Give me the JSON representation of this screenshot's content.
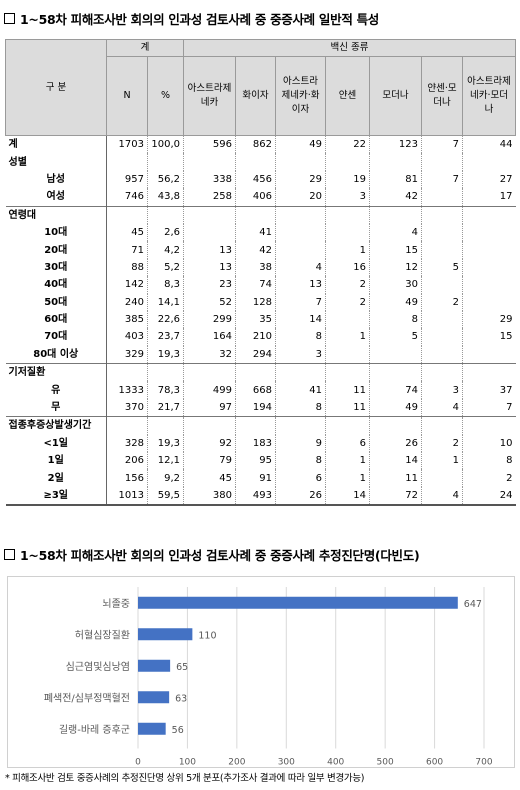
{
  "table_title": "1~58차 피해조사반 회의의 인과성 검토사례 중 중증사례 일반적 특성",
  "chart_title": "1~58차 피해조사반 회의의 인과성 검토사례 중 중증사례 추정진단명(다빈도)",
  "table": {
    "header": {
      "group": "구 분",
      "total": "계",
      "vaccine_type": "백신 종류",
      "n": "N",
      "pct": "%",
      "vaccines": [
        "아스트라제네카",
        "화이자",
        "아스트라제네카·화이자",
        "얀센",
        "모더나",
        "얀센·모더나",
        "아스트라제네카·모더나"
      ]
    },
    "rows": [
      {
        "label": "계",
        "kind": "hdr",
        "grp": true,
        "cells": [
          "1703",
          "100,0",
          "596",
          "862",
          "49",
          "22",
          "123",
          "7",
          "44"
        ]
      },
      {
        "label": "성별",
        "kind": "hdr",
        "cells": [
          "",
          "",
          "",
          "",
          "",
          "",
          "",
          "",
          ""
        ]
      },
      {
        "label": "남성",
        "kind": "sub",
        "cells": [
          "957",
          "56,2",
          "338",
          "456",
          "29",
          "19",
          "81",
          "7",
          "27"
        ]
      },
      {
        "label": "여성",
        "kind": "sub",
        "cells": [
          "746",
          "43,8",
          "258",
          "406",
          "20",
          "3",
          "42",
          "",
          "17"
        ]
      },
      {
        "label": "연령대",
        "kind": "hdr",
        "grp": true,
        "cells": [
          "",
          "",
          "",
          "",
          "",
          "",
          "",
          "",
          ""
        ]
      },
      {
        "label": "10대",
        "kind": "sub",
        "cells": [
          "45",
          "2,6",
          "",
          "41",
          "",
          "",
          "4",
          "",
          ""
        ]
      },
      {
        "label": "20대",
        "kind": "sub",
        "cells": [
          "71",
          "4,2",
          "13",
          "42",
          "",
          "1",
          "15",
          "",
          ""
        ]
      },
      {
        "label": "30대",
        "kind": "sub",
        "cells": [
          "88",
          "5,2",
          "13",
          "38",
          "4",
          "16",
          "12",
          "5",
          ""
        ]
      },
      {
        "label": "40대",
        "kind": "sub",
        "cells": [
          "142",
          "8,3",
          "23",
          "74",
          "13",
          "2",
          "30",
          "",
          ""
        ]
      },
      {
        "label": "50대",
        "kind": "sub",
        "cells": [
          "240",
          "14,1",
          "52",
          "128",
          "7",
          "2",
          "49",
          "2",
          ""
        ]
      },
      {
        "label": "60대",
        "kind": "sub",
        "cells": [
          "385",
          "22,6",
          "299",
          "35",
          "14",
          "",
          "8",
          "",
          "29"
        ]
      },
      {
        "label": "70대",
        "kind": "sub",
        "cells": [
          "403",
          "23,7",
          "164",
          "210",
          "8",
          "1",
          "5",
          "",
          "15"
        ]
      },
      {
        "label": "80대 이상",
        "kind": "sub",
        "cells": [
          "329",
          "19,3",
          "32",
          "294",
          "3",
          "",
          "",
          "",
          ""
        ]
      },
      {
        "label": "기저질환",
        "kind": "hdr",
        "grp": true,
        "cells": [
          "",
          "",
          "",
          "",
          "",
          "",
          "",
          "",
          ""
        ]
      },
      {
        "label": "유",
        "kind": "sub",
        "cells": [
          "1333",
          "78,3",
          "499",
          "668",
          "41",
          "11",
          "74",
          "3",
          "37"
        ]
      },
      {
        "label": "무",
        "kind": "sub",
        "cells": [
          "370",
          "21,7",
          "97",
          "194",
          "8",
          "11",
          "49",
          "4",
          "7"
        ]
      },
      {
        "label": "접종후증상발생기간",
        "kind": "hdr",
        "grp": true,
        "cells": [
          "",
          "",
          "",
          "",
          "",
          "",
          "",
          "",
          ""
        ]
      },
      {
        "label": "<1일",
        "kind": "sub",
        "cells": [
          "328",
          "19,3",
          "92",
          "183",
          "9",
          "6",
          "26",
          "2",
          "10"
        ]
      },
      {
        "label": "1일",
        "kind": "sub",
        "cells": [
          "206",
          "12,1",
          "79",
          "95",
          "8",
          "1",
          "14",
          "1",
          "8"
        ]
      },
      {
        "label": "2일",
        "kind": "sub",
        "cells": [
          "156",
          "9,2",
          "45",
          "91",
          "6",
          "1",
          "11",
          "",
          "2"
        ]
      },
      {
        "label": "≥3일",
        "kind": "sub",
        "last": true,
        "cells": [
          "1013",
          "59,5",
          "380",
          "493",
          "26",
          "14",
          "72",
          "4",
          "24"
        ]
      }
    ]
  },
  "chart_data": {
    "type": "bar",
    "orientation": "horizontal",
    "categories": [
      "뇌졸중",
      "허혈심장질환",
      "심근염및심낭염",
      "폐색전/심부정맥혈전",
      "길랭-바레 증후군"
    ],
    "values": [
      647,
      110,
      65,
      63,
      56
    ],
    "xlim": [
      0,
      700
    ],
    "xticks": [
      "0",
      "100",
      "200",
      "300",
      "400",
      "500",
      "600",
      "700"
    ],
    "grid": true,
    "bar_color": "#4472c4"
  },
  "footnote": "* 피해조사반 검토 중증사례의 추정진단명 상위 5개 분포(추가조사 결과에 따라 일부 변경가능)"
}
